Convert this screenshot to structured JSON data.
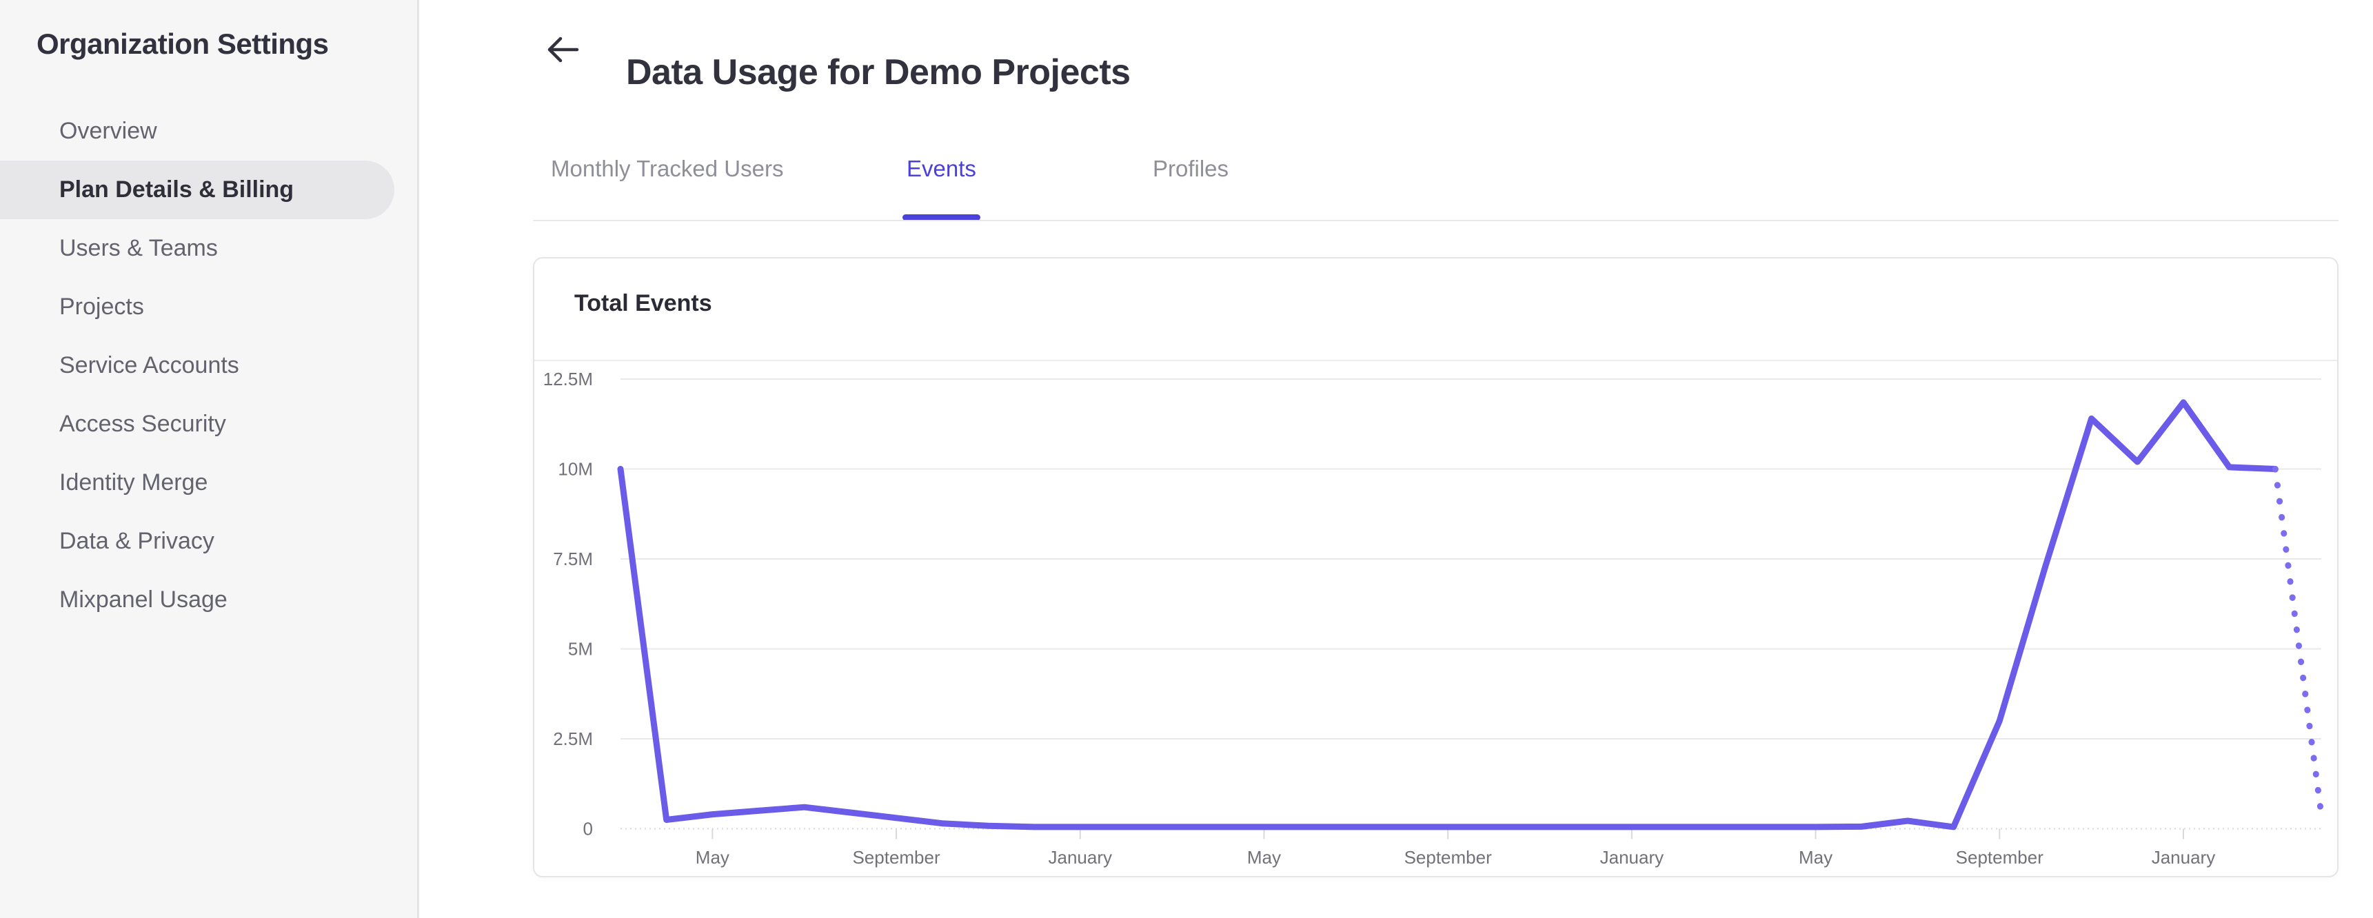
{
  "sidebar": {
    "title": "Organization Settings",
    "items": [
      {
        "label": "Overview",
        "selected": false
      },
      {
        "label": "Plan Details & Billing",
        "selected": true
      },
      {
        "label": "Users & Teams",
        "selected": false
      },
      {
        "label": "Projects",
        "selected": false
      },
      {
        "label": "Service Accounts",
        "selected": false
      },
      {
        "label": "Access Security",
        "selected": false
      },
      {
        "label": "Identity Merge",
        "selected": false
      },
      {
        "label": "Data & Privacy",
        "selected": false
      },
      {
        "label": "Mixpanel Usage",
        "selected": false
      }
    ]
  },
  "header": {
    "back_icon": "arrow-left-icon",
    "title": "Data Usage for Demo Projects"
  },
  "tabs": [
    {
      "label": "Monthly Tracked Users",
      "active": false
    },
    {
      "label": "Events",
      "active": true
    },
    {
      "label": "Profiles",
      "active": false
    }
  ],
  "card": {
    "title": "Total Events"
  },
  "chart_data": {
    "type": "line",
    "title": "Total Events",
    "xlabel": "",
    "ylabel": "",
    "ylim_millions": [
      0,
      12.5
    ],
    "grid": "horizontal",
    "legend_position": "none",
    "yticks": [
      {
        "value_millions": 12.5,
        "label": "12.5M"
      },
      {
        "value_millions": 10,
        "label": "10M"
      },
      {
        "value_millions": 7.5,
        "label": "7.5M"
      },
      {
        "value_millions": 5,
        "label": "5M"
      },
      {
        "value_millions": 2.5,
        "label": "2.5M"
      },
      {
        "value_millions": 0,
        "label": "0"
      }
    ],
    "x_unit": "month",
    "num_points": 38,
    "xticks": [
      {
        "index": 2,
        "label": "May"
      },
      {
        "index": 6,
        "label": "September"
      },
      {
        "index": 10,
        "label": "January"
      },
      {
        "index": 14,
        "label": "May"
      },
      {
        "index": 18,
        "label": "September"
      },
      {
        "index": 22,
        "label": "January"
      },
      {
        "index": 26,
        "label": "May"
      },
      {
        "index": 30,
        "label": "September"
      },
      {
        "index": 34,
        "label": "January"
      }
    ],
    "series": [
      {
        "name": "Total Events",
        "values_millions": [
          10,
          0.25,
          0.4,
          0.5,
          0.6,
          0.45,
          0.3,
          0.15,
          0.08,
          0.05,
          0.05,
          0.05,
          0.05,
          0.05,
          0.05,
          0.05,
          0.05,
          0.05,
          0.05,
          0.05,
          0.05,
          0.05,
          0.05,
          0.05,
          0.05,
          0.05,
          0.05,
          0.06,
          0.22,
          0.05,
          3.0,
          7.3,
          11.4,
          10.2,
          11.85,
          10.05,
          10.0,
          0.4
        ],
        "projected_from_index": 36
      }
    ],
    "colors": {
      "line": "#6a5be8",
      "projected_dots": "#7b6cf0",
      "grid": "#e9e9ec",
      "axis": "#d8d8dc",
      "tick": "#d9d9dd",
      "tick_label": "#71717a"
    }
  },
  "colors": {
    "accent": "#4b40db",
    "sidebar_bg": "#f6f6f7",
    "selected_item_bg": "#e7e7e9",
    "text_dark": "#32323f",
    "text_gray": "#63636d",
    "tab_inactive": "#8f8f98",
    "card_border": "#e5e5e8"
  }
}
